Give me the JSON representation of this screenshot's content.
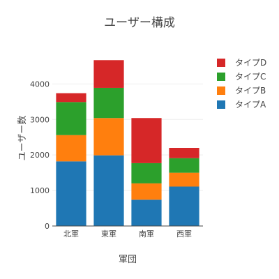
{
  "chart_data": {
    "type": "bar",
    "stacked": true,
    "title": "ユーザー構成",
    "xlabel": "軍団",
    "ylabel": "ユーザー数",
    "categories": [
      "北軍",
      "東軍",
      "南軍",
      "西軍"
    ],
    "series": [
      {
        "name": "タイプA",
        "color": "#1f77b4",
        "values": [
          1820,
          1990,
          740,
          1110
        ]
      },
      {
        "name": "タイプB",
        "color": "#ff7f0e",
        "values": [
          740,
          1050,
          460,
          390
        ]
      },
      {
        "name": "タイプC",
        "color": "#2ca02c",
        "values": [
          930,
          850,
          570,
          410
        ]
      },
      {
        "name": "タイプD",
        "color": "#d62728",
        "values": [
          250,
          780,
          1270,
          290
        ]
      }
    ],
    "ylim": [
      0,
      4950
    ],
    "yticks": [
      0,
      1000,
      2000,
      3000,
      4000
    ],
    "grid": true,
    "legend": "top-right"
  }
}
